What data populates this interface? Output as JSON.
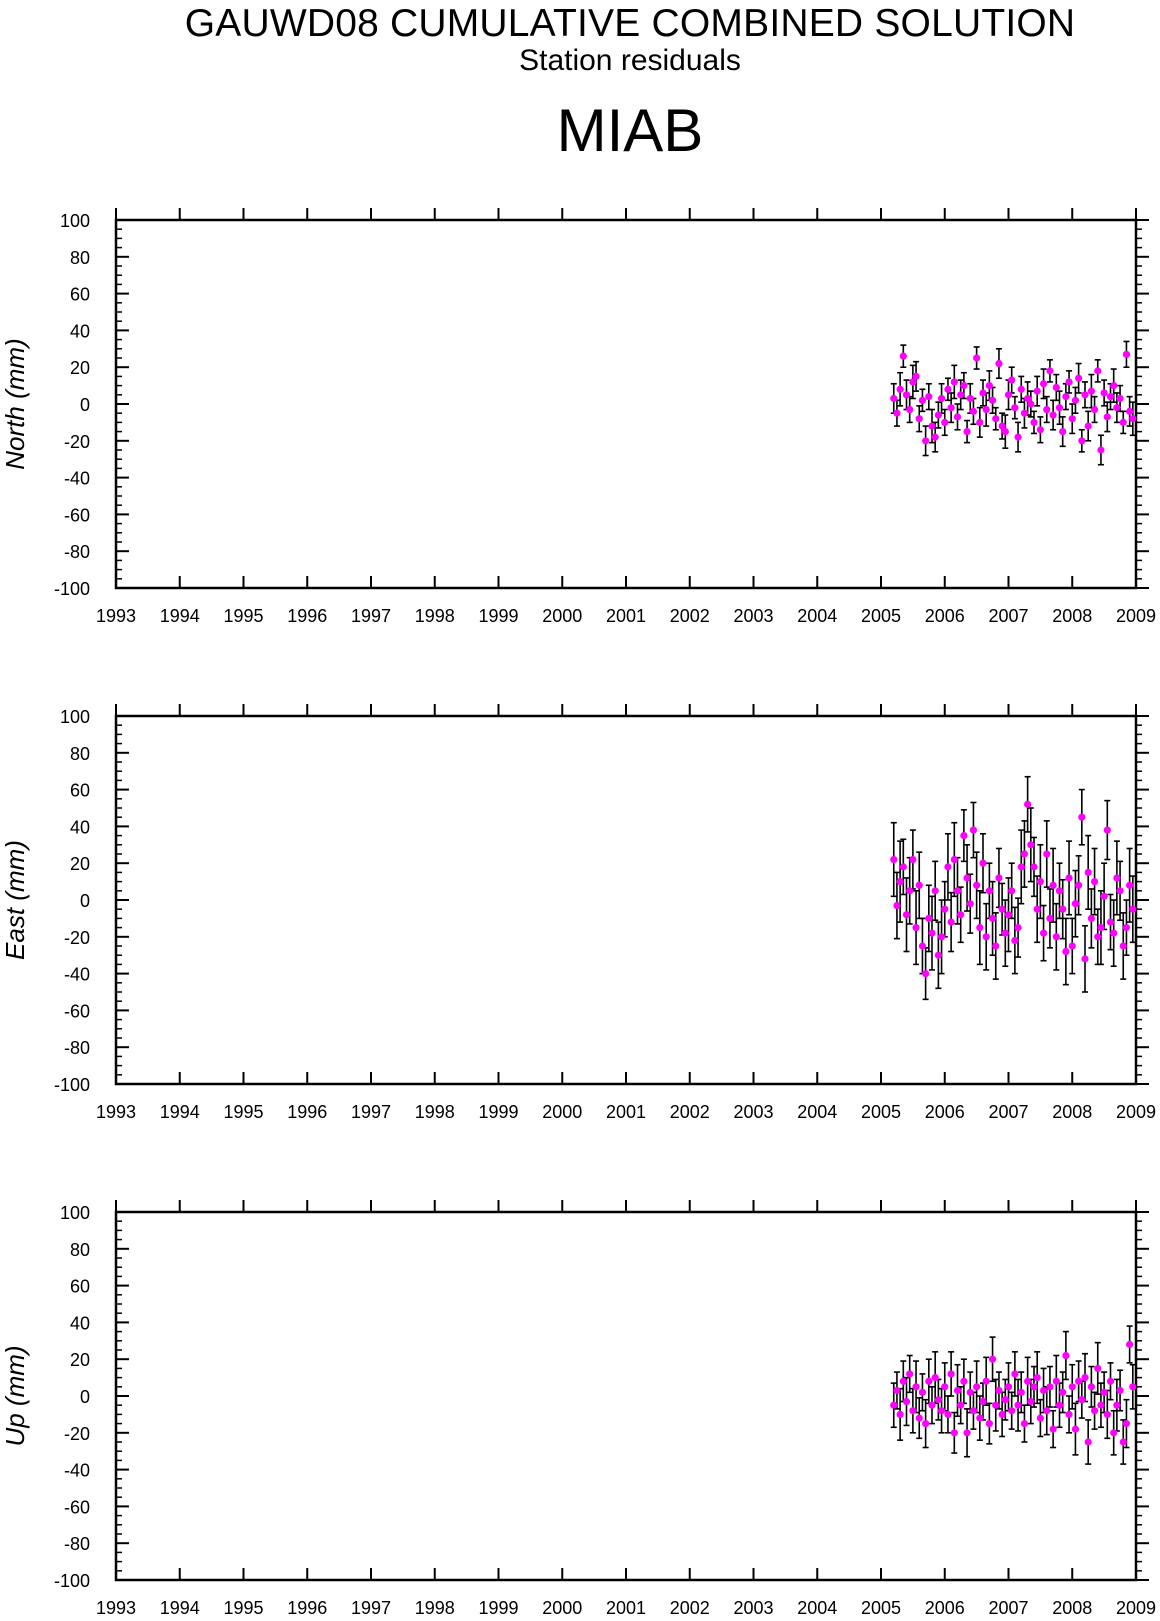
{
  "header": {
    "title": "GAUWD08 CUMULATIVE COMBINED SOLUTION",
    "subtitle": "Station residuals",
    "station": "MIAB"
  },
  "colors": {
    "points": "#ff00ff",
    "errorbars": "#000000",
    "axes": "#000000"
  },
  "chart_data": [
    {
      "type": "scatter",
      "component": "North",
      "ylabel": "North (mm)",
      "xlim": [
        1993,
        2009
      ],
      "ylim": [
        -100,
        100
      ],
      "xticks": [
        "1993",
        "1994",
        "1995",
        "1996",
        "1997",
        "1998",
        "1999",
        "2000",
        "2001",
        "2002",
        "2003",
        "2004",
        "2005",
        "2006",
        "2007",
        "2008",
        "2009"
      ],
      "yticks": [
        "-100",
        "-80",
        "-60",
        "-40",
        "-20",
        "0",
        "20",
        "40",
        "60",
        "80",
        "100"
      ],
      "grid": false,
      "error_bars": true,
      "x_range_observed": [
        2005.2,
        2009.0
      ],
      "series": [
        {
          "x": [
            2005.2,
            2005.25,
            2005.3,
            2005.35,
            2005.4,
            2005.45,
            2005.5,
            2005.55,
            2005.6,
            2005.65,
            2005.7,
            2005.75,
            2005.8,
            2005.85,
            2005.9,
            2005.95,
            2006.0,
            2006.05,
            2006.1,
            2006.15,
            2006.2,
            2006.25,
            2006.3,
            2006.35,
            2006.4,
            2006.45,
            2006.5,
            2006.55,
            2006.6,
            2006.65,
            2006.7,
            2006.75,
            2006.8,
            2006.85,
            2006.9,
            2006.95,
            2007.0,
            2007.05,
            2007.1,
            2007.15,
            2007.2,
            2007.25,
            2007.3,
            2007.35,
            2007.4,
            2007.45,
            2007.5,
            2007.55,
            2007.6,
            2007.65,
            2007.7,
            2007.75,
            2007.8,
            2007.85,
            2007.9,
            2007.95,
            2008.0,
            2008.05,
            2008.1,
            2008.15,
            2008.2,
            2008.25,
            2008.3,
            2008.35,
            2008.4,
            2008.45,
            2008.5,
            2008.55,
            2008.6,
            2008.65,
            2008.7,
            2008.75,
            2008.8,
            2008.85,
            2008.9,
            2008.95
          ],
          "y": [
            3,
            -5,
            8,
            26,
            5,
            -3,
            12,
            15,
            -8,
            2,
            -20,
            4,
            -12,
            -18,
            -6,
            3,
            -10,
            8,
            -2,
            12,
            -7,
            5,
            10,
            -15,
            3,
            -4,
            25,
            -10,
            6,
            -3,
            10,
            2,
            -8,
            22,
            -12,
            -15,
            5,
            13,
            -2,
            -18,
            8,
            -5,
            3,
            0,
            -10,
            7,
            -14,
            11,
            -3,
            18,
            -6,
            9,
            -2,
            -15,
            4,
            12,
            -8,
            2,
            14,
            -20,
            5,
            -12,
            7,
            -3,
            18,
            -25,
            6,
            -7,
            4,
            10,
            -2,
            3,
            -10,
            27,
            -4,
            -8
          ],
          "err": [
            8,
            7,
            9,
            6,
            8,
            7,
            9,
            8,
            7,
            6,
            8,
            7,
            9,
            8,
            7,
            8,
            7,
            6,
            8,
            9,
            7,
            8,
            7,
            6,
            8,
            7,
            6,
            8,
            7,
            9,
            8,
            7,
            6,
            8,
            7,
            9,
            8,
            7,
            6,
            8,
            7,
            8,
            9,
            7,
            6,
            8,
            7,
            8,
            7,
            6,
            8,
            7,
            9,
            8,
            7,
            6,
            8,
            7,
            8,
            6,
            7,
            8,
            9,
            7,
            6,
            8,
            7,
            8,
            7,
            9,
            8,
            7,
            6,
            7,
            8,
            9
          ]
        }
      ]
    },
    {
      "type": "scatter",
      "component": "East",
      "ylabel": "East (mm)",
      "xlim": [
        1993,
        2009
      ],
      "ylim": [
        -100,
        100
      ],
      "xticks": [
        "1993",
        "1994",
        "1995",
        "1996",
        "1997",
        "1998",
        "1999",
        "2000",
        "2001",
        "2002",
        "2003",
        "2004",
        "2005",
        "2006",
        "2007",
        "2008",
        "2009"
      ],
      "yticks": [
        "-100",
        "-80",
        "-60",
        "-40",
        "-20",
        "0",
        "20",
        "40",
        "60",
        "80",
        "100"
      ],
      "grid": false,
      "error_bars": true,
      "x_range_observed": [
        2005.2,
        2009.0
      ],
      "series": [
        {
          "x": [
            2005.2,
            2005.25,
            2005.3,
            2005.35,
            2005.4,
            2005.45,
            2005.5,
            2005.55,
            2005.6,
            2005.65,
            2005.7,
            2005.75,
            2005.8,
            2005.85,
            2005.9,
            2005.95,
            2006.0,
            2006.05,
            2006.1,
            2006.15,
            2006.2,
            2006.25,
            2006.3,
            2006.35,
            2006.4,
            2006.45,
            2006.5,
            2006.55,
            2006.6,
            2006.65,
            2006.7,
            2006.75,
            2006.8,
            2006.85,
            2006.9,
            2006.95,
            2007.0,
            2007.05,
            2007.1,
            2007.15,
            2007.2,
            2007.25,
            2007.3,
            2007.35,
            2007.4,
            2007.45,
            2007.5,
            2007.55,
            2007.6,
            2007.65,
            2007.7,
            2007.75,
            2007.8,
            2007.85,
            2007.9,
            2007.95,
            2008.0,
            2008.05,
            2008.1,
            2008.15,
            2008.2,
            2008.25,
            2008.3,
            2008.35,
            2008.4,
            2008.45,
            2008.5,
            2008.55,
            2008.6,
            2008.65,
            2008.7,
            2008.75,
            2008.8,
            2008.85,
            2008.9,
            2008.95
          ],
          "y": [
            22,
            -3,
            10,
            18,
            -8,
            5,
            22,
            -15,
            8,
            -25,
            -40,
            -10,
            -18,
            5,
            -30,
            -20,
            -5,
            18,
            -12,
            22,
            5,
            -8,
            35,
            12,
            -2,
            38,
            8,
            -15,
            20,
            -20,
            5,
            -10,
            -25,
            12,
            -5,
            -18,
            -8,
            5,
            -22,
            -15,
            18,
            25,
            52,
            30,
            18,
            -5,
            10,
            -18,
            25,
            -10,
            8,
            -20,
            5,
            -5,
            -28,
            12,
            -25,
            -2,
            8,
            45,
            -32,
            15,
            -10,
            10,
            -20,
            -15,
            2,
            38,
            -12,
            -18,
            12,
            5,
            -25,
            -15,
            8,
            -5
          ],
          "err": [
            20,
            18,
            22,
            15,
            20,
            18,
            16,
            20,
            18,
            15,
            14,
            18,
            20,
            16,
            18,
            20,
            15,
            18,
            16,
            20,
            18,
            15,
            14,
            18,
            16,
            15,
            18,
            20,
            16,
            18,
            15,
            20,
            18,
            16,
            14,
            18,
            20,
            15,
            18,
            16,
            20,
            18,
            15,
            20,
            16,
            18,
            20,
            15,
            18,
            16,
            20,
            18,
            15,
            16,
            18,
            20,
            15,
            18,
            16,
            15,
            18,
            20,
            16,
            18,
            15,
            20,
            18,
            16,
            15,
            18,
            20,
            16,
            18,
            15,
            20,
            18
          ]
        }
      ]
    },
    {
      "type": "scatter",
      "component": "Up",
      "ylabel": "Up (mm)",
      "xlim": [
        1993,
        2009
      ],
      "ylim": [
        -100,
        100
      ],
      "xticks": [
        "1993",
        "1994",
        "1995",
        "1996",
        "1997",
        "1998",
        "1999",
        "2000",
        "2001",
        "2002",
        "2003",
        "2004",
        "2005",
        "2006",
        "2007",
        "2008",
        "2009"
      ],
      "yticks": [
        "-100",
        "-80",
        "-60",
        "-40",
        "-20",
        "0",
        "20",
        "40",
        "60",
        "80",
        "100"
      ],
      "grid": false,
      "error_bars": true,
      "x_range_observed": [
        2005.2,
        2009.0
      ],
      "series": [
        {
          "x": [
            2005.2,
            2005.25,
            2005.3,
            2005.35,
            2005.4,
            2005.45,
            2005.5,
            2005.55,
            2005.6,
            2005.65,
            2005.7,
            2005.75,
            2005.8,
            2005.85,
            2005.9,
            2005.95,
            2006.0,
            2006.05,
            2006.1,
            2006.15,
            2006.2,
            2006.25,
            2006.3,
            2006.35,
            2006.4,
            2006.45,
            2006.5,
            2006.55,
            2006.6,
            2006.65,
            2006.7,
            2006.75,
            2006.8,
            2006.85,
            2006.9,
            2006.95,
            2007.0,
            2007.05,
            2007.1,
            2007.15,
            2007.2,
            2007.25,
            2007.3,
            2007.35,
            2007.4,
            2007.45,
            2007.5,
            2007.55,
            2007.6,
            2007.65,
            2007.7,
            2007.75,
            2007.8,
            2007.85,
            2007.9,
            2007.95,
            2008.0,
            2008.05,
            2008.1,
            2008.15,
            2008.2,
            2008.25,
            2008.3,
            2008.35,
            2008.4,
            2008.45,
            2008.5,
            2008.55,
            2008.6,
            2008.65,
            2008.7,
            2008.75,
            2008.8,
            2008.85,
            2008.9,
            2008.95
          ],
          "y": [
            -5,
            3,
            -10,
            8,
            -3,
            12,
            -8,
            5,
            -12,
            2,
            -15,
            8,
            -5,
            10,
            -2,
            -8,
            5,
            -10,
            12,
            -20,
            3,
            -5,
            8,
            -20,
            2,
            -8,
            5,
            -12,
            -3,
            8,
            -15,
            20,
            -5,
            3,
            -10,
            -2,
            5,
            -8,
            12,
            -5,
            2,
            -15,
            8,
            -3,
            5,
            10,
            -12,
            3,
            -8,
            5,
            -18,
            8,
            -5,
            2,
            22,
            -10,
            5,
            -18,
            8,
            -2,
            10,
            -25,
            5,
            -8,
            15,
            -5,
            2,
            -10,
            8,
            -20,
            -5,
            3,
            -25,
            -15,
            28,
            5
          ],
          "err": [
            12,
            10,
            14,
            11,
            13,
            10,
            12,
            14,
            11,
            10,
            13,
            12,
            10,
            14,
            11,
            12,
            13,
            10,
            12,
            11,
            14,
            10,
            12,
            13,
            11,
            10,
            14,
            12,
            10,
            13,
            11,
            12,
            14,
            10,
            12,
            11,
            13,
            10,
            12,
            14,
            11,
            10,
            13,
            12,
            11,
            14,
            10,
            12,
            13,
            11,
            10,
            14,
            12,
            11,
            13,
            10,
            12,
            14,
            11,
            10,
            13,
            12,
            11,
            10,
            14,
            12,
            11,
            13,
            10,
            12,
            14,
            11,
            12,
            13,
            10,
            12
          ]
        }
      ]
    }
  ]
}
